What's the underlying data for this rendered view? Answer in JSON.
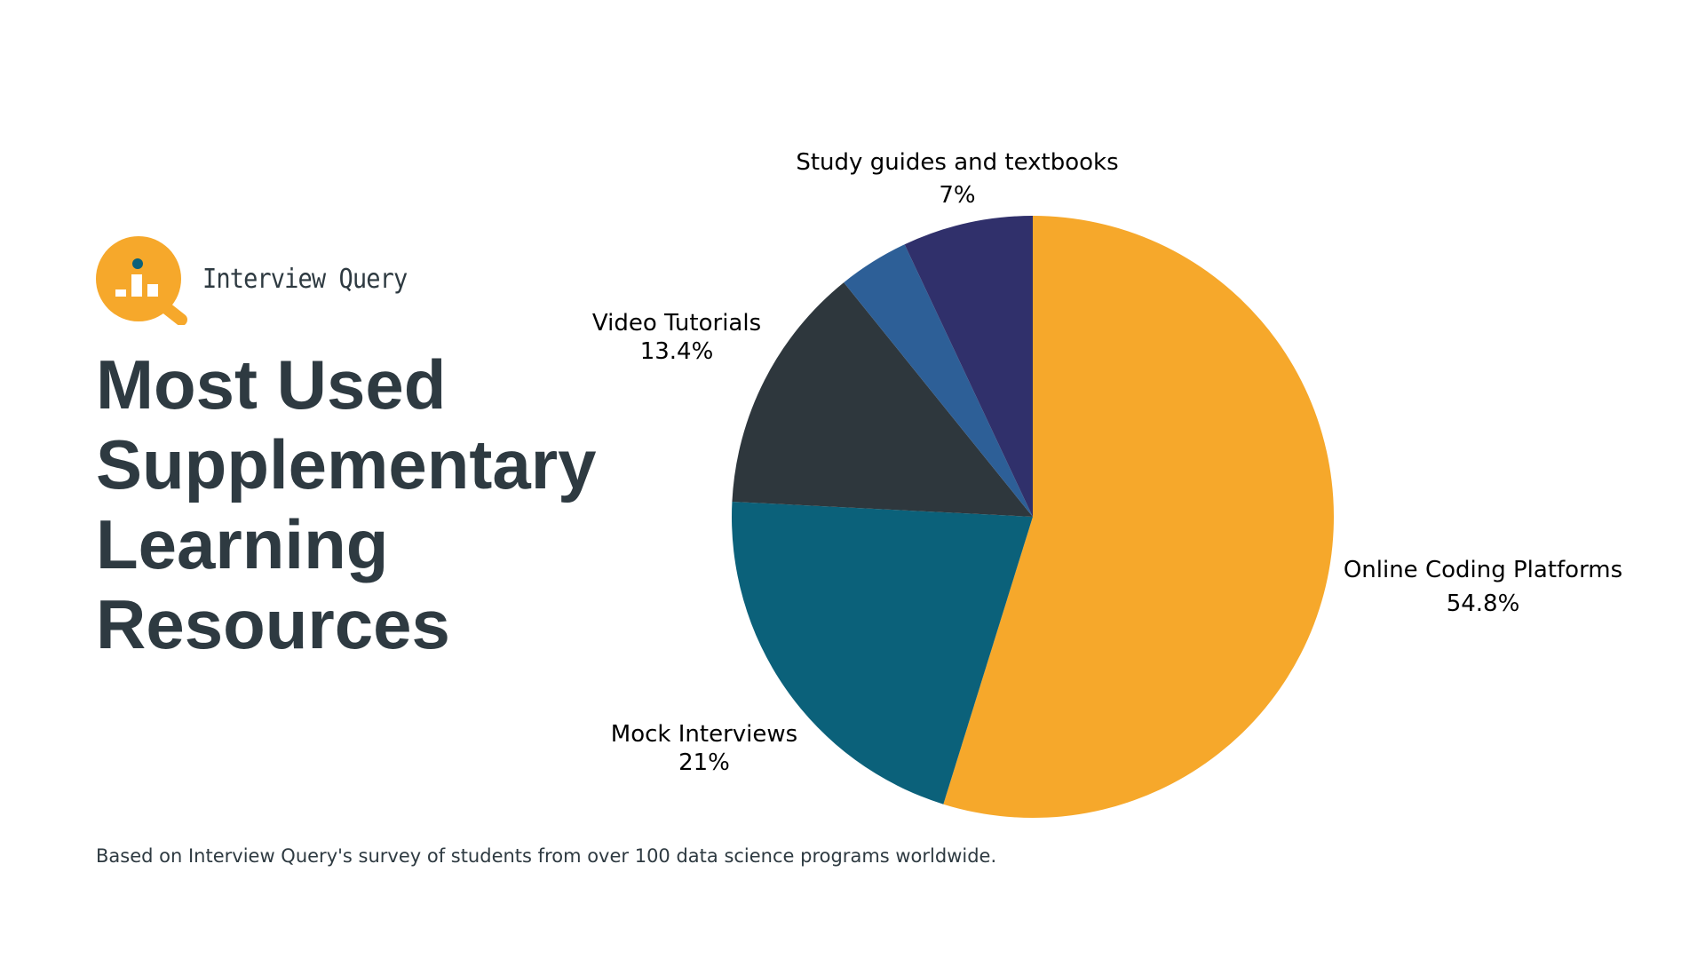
{
  "brand": {
    "name": "Interview Query",
    "logo_color": "#F6A82B",
    "logo_dark": "#2E3A41"
  },
  "title_lines": [
    "Most Used",
    "Supplementary",
    "Learning",
    "Resources"
  ],
  "footnote": "Based on Interview Query's survey of students from over 100 data science programs worldwide.",
  "chart_data": {
    "type": "pie",
    "title": "Most Used Supplementary Learning Resources",
    "start": "top, clockwise",
    "slices": [
      {
        "name": "Online Coding Platforms",
        "value": 54.8,
        "label": "54.8%",
        "color": "#F6A82B"
      },
      {
        "name": "Mock Interviews",
        "value": 21,
        "label": "21%",
        "color": "#0B617A"
      },
      {
        "name": "Video Tutorials",
        "value": 13.4,
        "label": "13.4%",
        "color": "#2E373D"
      },
      {
        "name": "",
        "value": 3.8,
        "label": "",
        "color": "#2D5F97"
      },
      {
        "name": "Study guides and textbooks",
        "value": 7,
        "label": "7%",
        "color": "#30306B"
      }
    ]
  }
}
